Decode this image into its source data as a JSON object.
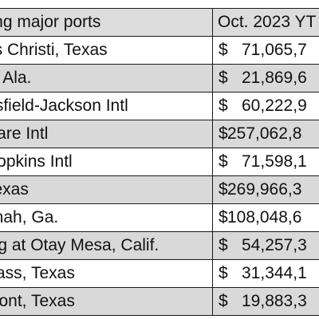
{
  "table": {
    "headers": [
      "ving major ports",
      "Oct. 2023 YT"
    ],
    "rows": [
      {
        "port": "us Christi, Texas",
        "currency": "$",
        "value": "71,065,7"
      },
      {
        "port": "e, Ala.",
        "currency": "$",
        "value": "21,869,6"
      },
      {
        "port": "rtsfield-Jackson Intl",
        "currency": "$",
        "value": "60,222,9"
      },
      {
        "port": "Hare Intl",
        "currency": "$",
        "value": "257,062,8"
      },
      {
        "port": "Hopkins Intl",
        "currency": "$",
        "value": "71,598,1"
      },
      {
        "port": "Texas",
        "currency": "$",
        "value": "269,966,3"
      },
      {
        "port": "nnah, Ga.",
        "currency": "$",
        "value": "108,048,6"
      },
      {
        "port": "ing at Otay Mesa, Calif.",
        "currency": "$",
        "value": "54,257,3"
      },
      {
        "port": "Pass, Texas",
        "currency": "$",
        "value": "31,344,1"
      },
      {
        "port": "mont, Texas",
        "currency": "$",
        "value": "19,883,3"
      }
    ]
  }
}
